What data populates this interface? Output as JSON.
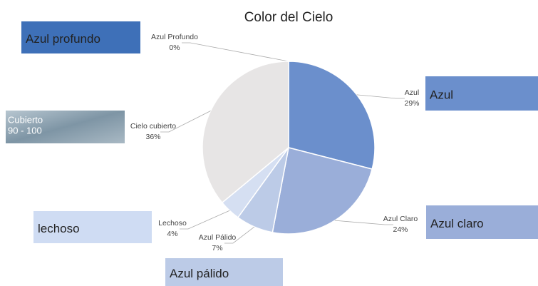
{
  "chart_data": {
    "type": "pie",
    "title": "Color del Cielo",
    "categories": [
      "Azul Profundo",
      "Azul",
      "Azul Claro",
      "Azul Pálido",
      "Lechoso",
      "Cielo cubierto"
    ],
    "values": [
      0,
      29,
      24,
      7,
      4,
      36
    ],
    "value_labels": [
      "0%",
      "29%",
      "24%",
      "7%",
      "4%",
      "36%"
    ],
    "colors": [
      "#3e70b8",
      "#6b8fcc",
      "#9aaed9",
      "#bccbe7",
      "#d5dff2",
      "#e7e5e5"
    ]
  },
  "boxes": [
    {
      "lines": [
        "Azul profundo"
      ],
      "color": "#3e70b8"
    },
    {
      "lines": [
        "Azul"
      ],
      "color": "#6b8fcc"
    },
    {
      "lines": [
        "Cubierto",
        "90 - 100"
      ],
      "color": "#8fa4b2"
    },
    {
      "lines": [
        "lechoso"
      ],
      "color": "#cfdcf3"
    },
    {
      "lines": [
        "Azul claro"
      ],
      "color": "#9aaed9"
    },
    {
      "lines": [
        "Azul pálido"
      ],
      "color": "#bccbe7"
    }
  ]
}
